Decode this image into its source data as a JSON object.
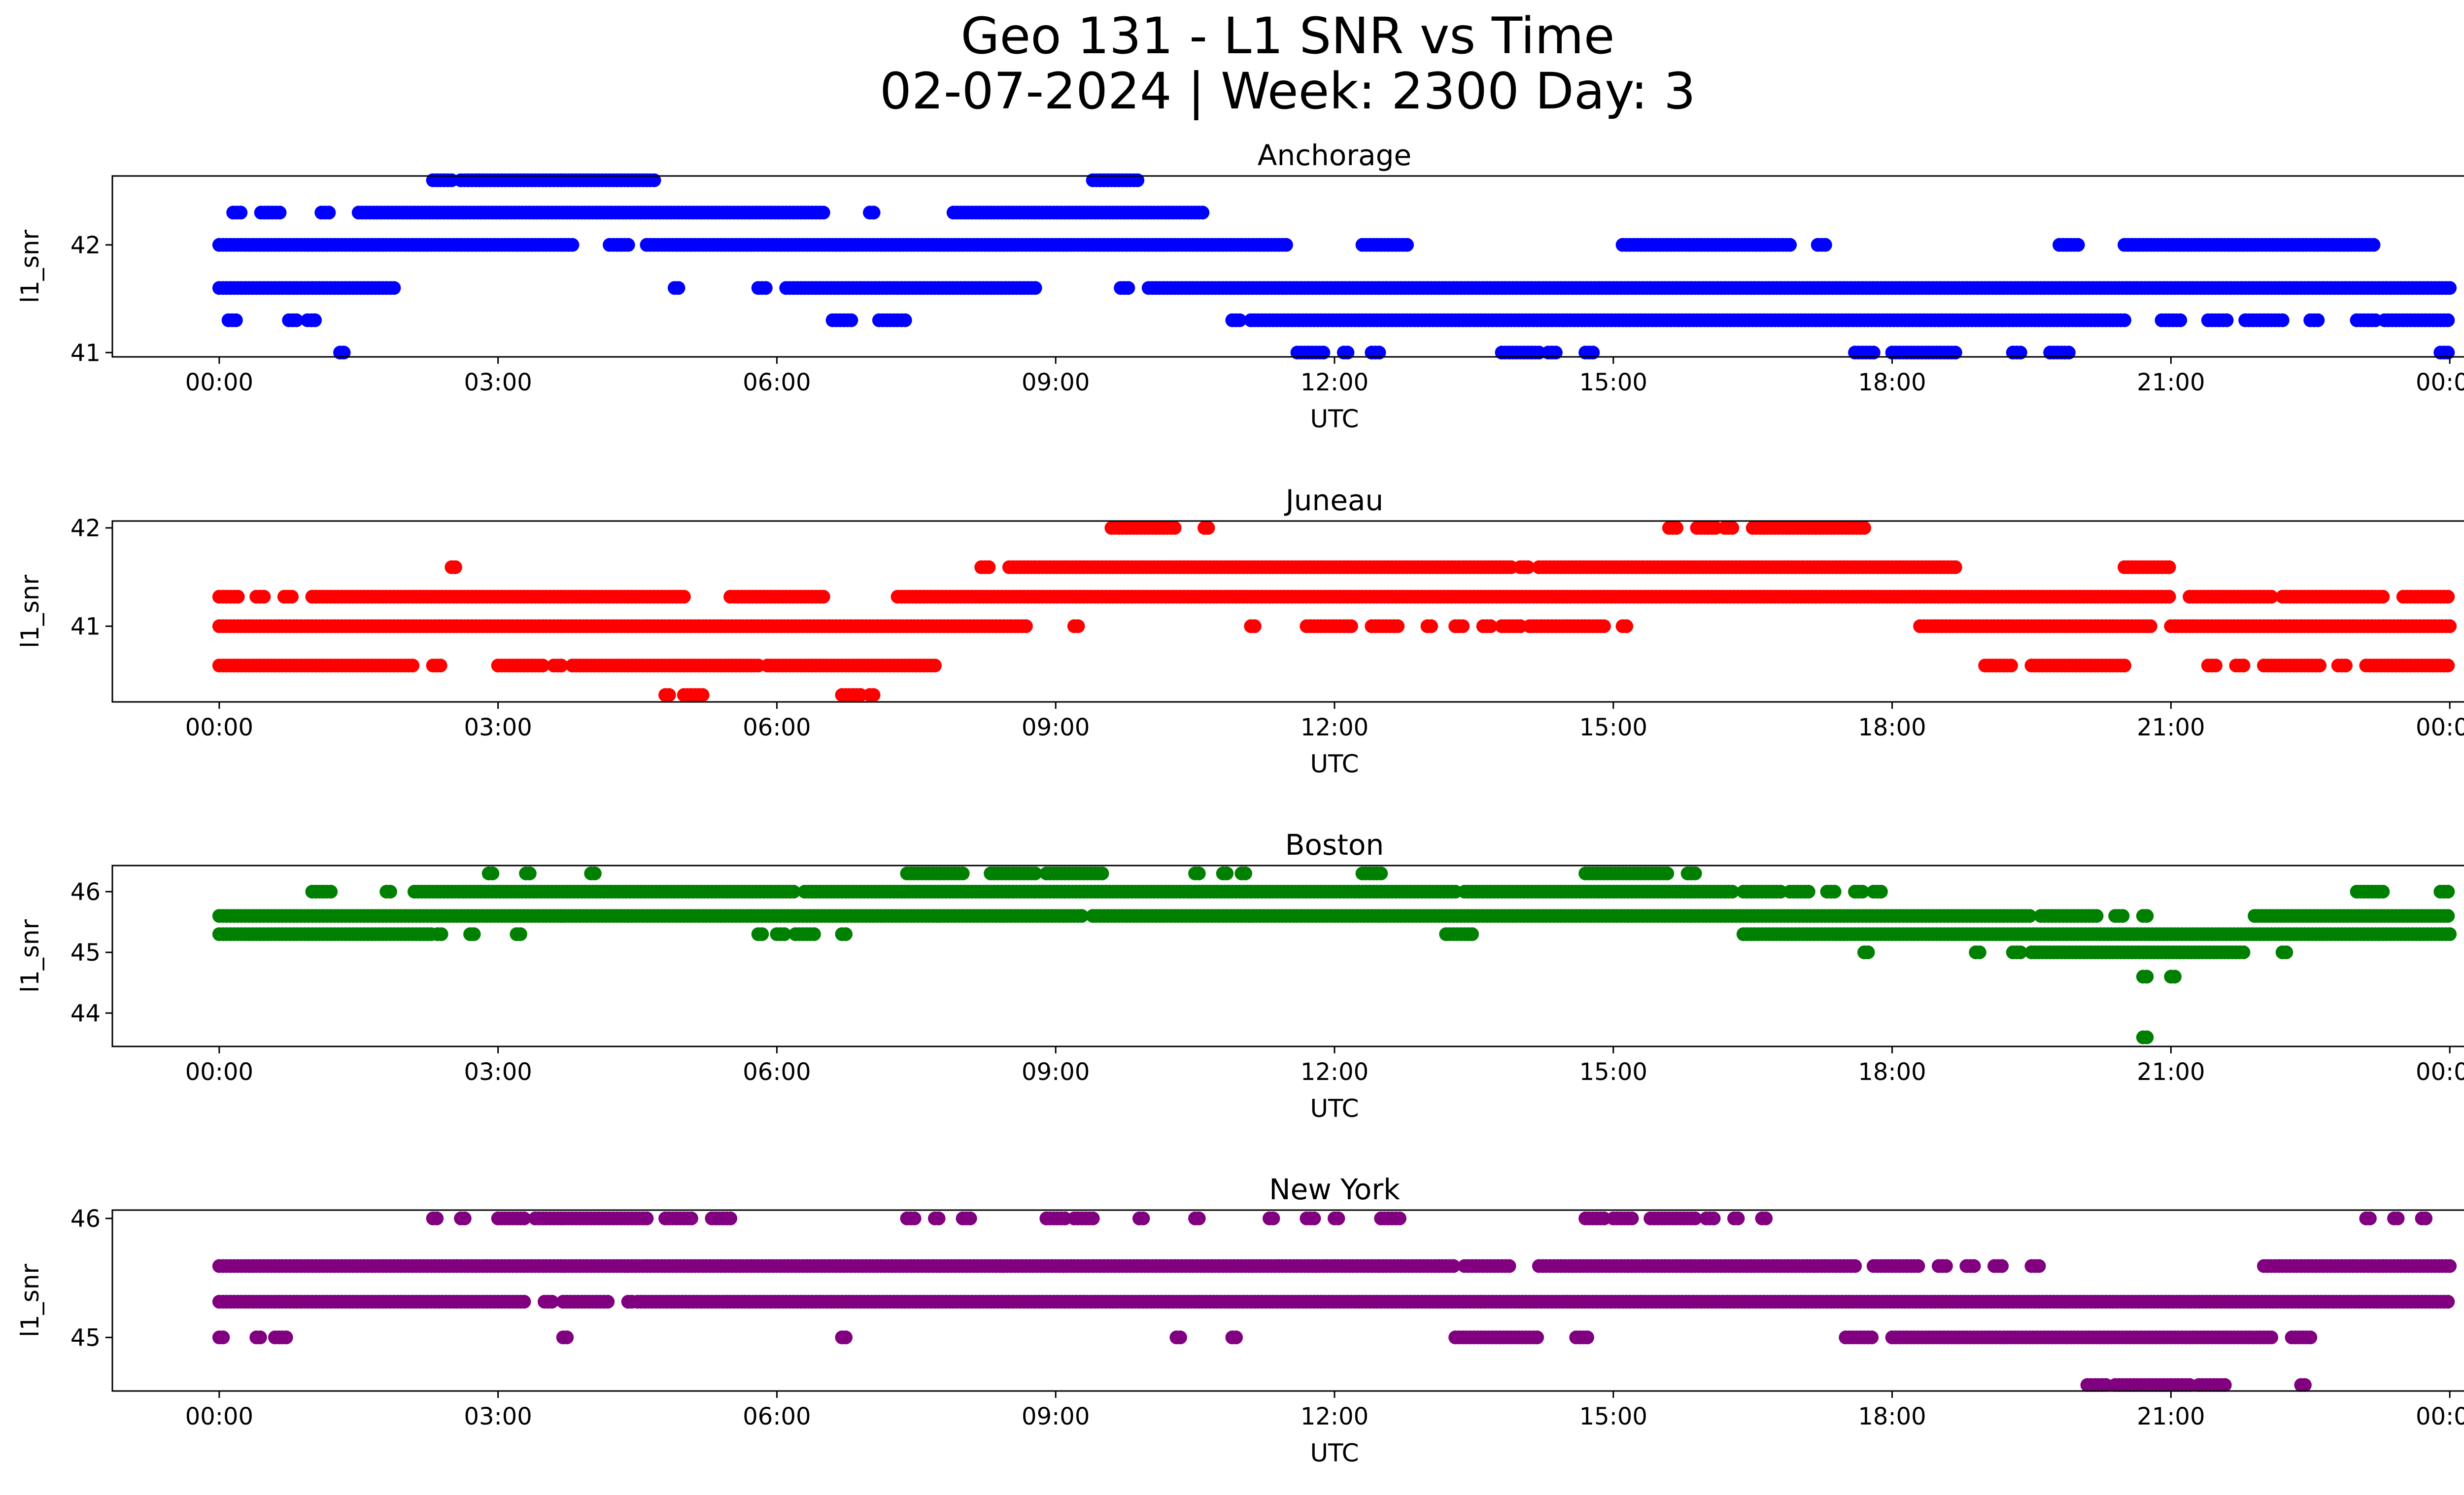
{
  "figure": {
    "title_line1": "Geo 131 - L1 SNR vs Time",
    "title_line2": "02-07-2024 | Week: 2300 Day: 3"
  },
  "chart_data": [
    {
      "type": "scatter",
      "title": "Anchorage",
      "xlabel": "UTC",
      "ylabel": "l1_snr",
      "color": "#0000ff",
      "xlim": [
        -1.15,
        25.15
      ],
      "ylim": [
        40.96,
        42.64
      ],
      "xticks": [
        "00:00",
        "03:00",
        "06:00",
        "09:00",
        "12:00",
        "15:00",
        "18:00",
        "21:00",
        "00:00"
      ],
      "yticks": [
        41,
        42
      ],
      "levels": [
        41.0,
        41.3,
        41.6,
        42.0,
        42.3,
        42.6
      ],
      "series": [
        {
          "y": 42.6,
          "runs": [
            [
              2.3,
              2.5
            ],
            [
              2.6,
              2.8
            ],
            [
              2.8,
              4.7
            ],
            [
              9.4,
              9.9
            ]
          ]
        },
        {
          "y": 42.3,
          "runs": [
            [
              0.15,
              0.25
            ],
            [
              0.45,
              0.65
            ],
            [
              1.1,
              1.2
            ],
            [
              1.5,
              6.5
            ],
            [
              7.0,
              7.05
            ],
            [
              7.9,
              10.6
            ]
          ]
        },
        {
          "y": 42.0,
          "runs": [
            [
              0.0,
              3.8
            ],
            [
              4.2,
              4.4
            ],
            [
              4.6,
              11.5
            ],
            [
              12.3,
              12.8
            ],
            [
              15.1,
              16.9
            ],
            [
              17.2,
              17.3
            ],
            [
              19.8,
              20.0
            ],
            [
              20.5,
              23.2
            ]
          ]
        },
        {
          "y": 41.6,
          "runs": [
            [
              0.0,
              1.9
            ],
            [
              4.9,
              4.95
            ],
            [
              5.8,
              5.9
            ],
            [
              6.1,
              8.8
            ],
            [
              9.7,
              9.8
            ],
            [
              10.0,
              24.0
            ]
          ]
        },
        {
          "y": 41.3,
          "runs": [
            [
              0.1,
              0.2
            ],
            [
              0.75,
              0.85
            ],
            [
              0.95,
              1.05
            ],
            [
              6.6,
              6.8
            ],
            [
              7.1,
              7.4
            ],
            [
              10.9,
              11.0
            ],
            [
              11.1,
              20.5
            ],
            [
              20.9,
              21.1
            ],
            [
              21.4,
              21.6
            ],
            [
              21.8,
              22.2
            ],
            [
              22.5,
              22.6
            ],
            [
              23.0,
              23.2
            ],
            [
              23.3,
              24.0
            ]
          ]
        },
        {
          "y": 41.0,
          "runs": [
            [
              1.3,
              1.35
            ],
            [
              11.6,
              11.9
            ],
            [
              12.1,
              12.15
            ],
            [
              12.4,
              12.5
            ],
            [
              13.8,
              14.2
            ],
            [
              14.3,
              14.4
            ],
            [
              14.7,
              14.8
            ],
            [
              17.6,
              17.8
            ],
            [
              18.0,
              18.7
            ],
            [
              19.3,
              19.4
            ],
            [
              19.7,
              19.9
            ],
            [
              23.9,
              24.0
            ]
          ]
        }
      ]
    },
    {
      "type": "scatter",
      "title": "Juneau",
      "xlabel": "UTC",
      "ylabel": "l1_snr",
      "color": "#ff0000",
      "xlim": [
        -1.15,
        25.15
      ],
      "ylim": [
        40.23,
        42.07
      ],
      "xticks": [
        "00:00",
        "03:00",
        "06:00",
        "09:00",
        "12:00",
        "15:00",
        "18:00",
        "21:00",
        "00:00"
      ],
      "yticks": [
        41,
        42
      ],
      "levels": [
        40.3,
        40.6,
        41.0,
        41.3,
        41.6,
        42.0
      ],
      "series": [
        {
          "y": 42.0,
          "runs": [
            [
              9.6,
              10.3
            ],
            [
              10.6,
              10.65
            ],
            [
              15.6,
              15.7
            ],
            [
              15.9,
              16.1
            ],
            [
              16.2,
              16.3
            ],
            [
              16.5,
              17.7
            ]
          ]
        },
        {
          "y": 41.6,
          "runs": [
            [
              2.5,
              2.55
            ],
            [
              8.2,
              8.3
            ],
            [
              8.5,
              13.9
            ],
            [
              14.0,
              14.1
            ],
            [
              14.2,
              18.7
            ],
            [
              20.5,
              21.0
            ]
          ]
        },
        {
          "y": 41.3,
          "runs": [
            [
              0.0,
              0.2
            ],
            [
              0.4,
              0.5
            ],
            [
              0.7,
              0.8
            ],
            [
              1.0,
              5.0
            ],
            [
              5.5,
              6.5
            ],
            [
              7.3,
              21.0
            ],
            [
              21.2,
              22.1
            ],
            [
              22.2,
              23.3
            ],
            [
              23.5,
              24.0
            ]
          ]
        },
        {
          "y": 41.0,
          "runs": [
            [
              0.0,
              8.7
            ],
            [
              9.2,
              9.25
            ],
            [
              11.1,
              11.15
            ],
            [
              11.7,
              12.2
            ],
            [
              12.4,
              12.7
            ],
            [
              13.0,
              13.05
            ],
            [
              13.3,
              13.4
            ],
            [
              13.6,
              13.7
            ],
            [
              13.8,
              14.0
            ],
            [
              14.1,
              14.9
            ],
            [
              15.1,
              15.15
            ],
            [
              18.3,
              20.8
            ],
            [
              21.0,
              24.0
            ]
          ]
        },
        {
          "y": 40.6,
          "runs": [
            [
              0.0,
              0.2
            ],
            [
              0.2,
              2.1
            ],
            [
              2.3,
              2.4
            ],
            [
              3.0,
              3.5
            ],
            [
              3.6,
              3.7
            ],
            [
              3.8,
              5.8
            ],
            [
              5.9,
              7.7
            ],
            [
              19.0,
              19.3
            ],
            [
              19.5,
              20.5
            ],
            [
              21.4,
              21.5
            ],
            [
              21.7,
              21.8
            ],
            [
              22.0,
              22.6
            ],
            [
              22.8,
              22.9
            ],
            [
              23.1,
              24.0
            ]
          ]
        },
        {
          "y": 40.3,
          "runs": [
            [
              4.8,
              4.85
            ],
            [
              5.0,
              5.2
            ],
            [
              6.7,
              6.9
            ],
            [
              7.0,
              7.05
            ]
          ]
        }
      ]
    },
    {
      "type": "scatter",
      "title": "Boston",
      "xlabel": "UTC",
      "ylabel": "l1_snr",
      "color": "#008000",
      "xlim": [
        -1.15,
        25.15
      ],
      "ylim": [
        43.45,
        46.43
      ],
      "xticks": [
        "00:00",
        "03:00",
        "06:00",
        "09:00",
        "12:00",
        "15:00",
        "18:00",
        "21:00",
        "00:00"
      ],
      "yticks": [
        44,
        45,
        46
      ],
      "levels": [
        43.6,
        44.6,
        45.0,
        45.3,
        45.6,
        46.0,
        46.3
      ],
      "series": [
        {
          "y": 46.3,
          "runs": [
            [
              2.9,
              2.95
            ],
            [
              3.3,
              3.35
            ],
            [
              4.0,
              4.05
            ],
            [
              7.4,
              8.0
            ],
            [
              8.3,
              8.8
            ],
            [
              8.9,
              9.5
            ],
            [
              10.5,
              10.55
            ],
            [
              10.8,
              10.85
            ],
            [
              11.0,
              11.05
            ],
            [
              12.3,
              12.5
            ],
            [
              14.7,
              15.6
            ],
            [
              15.8,
              15.9
            ]
          ]
        },
        {
          "y": 46.0,
          "runs": [
            [
              1.0,
              1.2
            ],
            [
              1.8,
              1.85
            ],
            [
              2.1,
              6.2
            ],
            [
              6.3,
              13.3
            ],
            [
              13.4,
              16.3
            ],
            [
              16.4,
              16.8
            ],
            [
              16.9,
              17.1
            ],
            [
              17.3,
              17.4
            ],
            [
              17.6,
              17.7
            ],
            [
              17.8,
              17.9
            ],
            [
              23.0,
              23.3
            ],
            [
              23.9,
              24.0
            ]
          ]
        },
        {
          "y": 45.6,
          "runs": [
            [
              0.0,
              9.3
            ],
            [
              9.4,
              19.5
            ],
            [
              19.6,
              20.2
            ],
            [
              20.4,
              20.5
            ],
            [
              20.7,
              20.75
            ],
            [
              21.9,
              24.0
            ]
          ]
        },
        {
          "y": 45.3,
          "runs": [
            [
              0.0,
              2.3
            ],
            [
              2.35,
              2.4
            ],
            [
              2.7,
              2.75
            ],
            [
              3.2,
              3.25
            ],
            [
              5.8,
              5.85
            ],
            [
              6.0,
              6.1
            ],
            [
              6.2,
              6.4
            ],
            [
              6.7,
              6.75
            ],
            [
              13.2,
              13.5
            ],
            [
              16.4,
              24.0
            ]
          ]
        },
        {
          "y": 45.0,
          "runs": [
            [
              17.7,
              17.75
            ],
            [
              18.9,
              18.95
            ],
            [
              19.3,
              19.4
            ],
            [
              19.5,
              21.8
            ],
            [
              22.2,
              22.25
            ]
          ]
        },
        {
          "y": 44.6,
          "runs": [
            [
              20.7,
              20.75
            ],
            [
              21.0,
              21.05
            ]
          ]
        },
        {
          "y": 43.6,
          "runs": [
            [
              20.7,
              20.75
            ]
          ]
        }
      ]
    },
    {
      "type": "scatter",
      "title": "New York",
      "xlabel": "UTC",
      "ylabel": "l1_snr",
      "color": "#800080",
      "xlim": [
        -1.15,
        25.15
      ],
      "ylim": [
        44.55,
        46.07
      ],
      "xticks": [
        "00:00",
        "03:00",
        "06:00",
        "09:00",
        "12:00",
        "15:00",
        "18:00",
        "21:00",
        "00:00"
      ],
      "yticks": [
        45,
        46
      ],
      "levels": [
        44.6,
        45.0,
        45.3,
        45.6,
        46.0
      ],
      "series": [
        {
          "y": 46.0,
          "runs": [
            [
              2.3,
              2.35
            ],
            [
              2.6,
              2.65
            ],
            [
              3.0,
              3.3
            ],
            [
              3.4,
              4.6
            ],
            [
              4.8,
              5.1
            ],
            [
              5.3,
              5.5
            ],
            [
              7.4,
              7.5
            ],
            [
              7.7,
              7.75
            ],
            [
              8.0,
              8.1
            ],
            [
              8.9,
              9.1
            ],
            [
              9.2,
              9.4
            ],
            [
              9.9,
              9.95
            ],
            [
              10.5,
              10.55
            ],
            [
              11.3,
              11.35
            ],
            [
              11.7,
              11.8
            ],
            [
              12.0,
              12.05
            ],
            [
              12.5,
              12.7
            ],
            [
              14.7,
              14.9
            ],
            [
              15.0,
              15.2
            ],
            [
              15.4,
              15.9
            ],
            [
              16.0,
              16.1
            ],
            [
              16.3,
              16.35
            ],
            [
              16.6,
              16.65
            ],
            [
              23.1,
              23.15
            ],
            [
              23.4,
              23.45
            ],
            [
              23.7,
              23.75
            ]
          ]
        },
        {
          "y": 45.6,
          "runs": [
            [
              0.0,
              13.3
            ],
            [
              13.4,
              13.9
            ],
            [
              14.2,
              17.6
            ],
            [
              17.8,
              18.3
            ],
            [
              18.5,
              18.6
            ],
            [
              18.8,
              18.9
            ],
            [
              19.1,
              19.2
            ],
            [
              19.5,
              19.6
            ],
            [
              22.0,
              24.0
            ]
          ]
        },
        {
          "y": 45.3,
          "runs": [
            [
              0.0,
              3.3
            ],
            [
              3.5,
              3.6
            ],
            [
              3.7,
              4.2
            ],
            [
              4.4,
              4.45
            ],
            [
              4.5,
              24.0
            ]
          ]
        },
        {
          "y": 45.0,
          "runs": [
            [
              0.0,
              0.05
            ],
            [
              0.4,
              0.45
            ],
            [
              0.6,
              0.75
            ],
            [
              3.7,
              3.75
            ],
            [
              6.7,
              6.75
            ],
            [
              10.3,
              10.35
            ],
            [
              10.9,
              10.95
            ],
            [
              13.3,
              14.2
            ],
            [
              14.6,
              14.75
            ],
            [
              17.5,
              17.8
            ],
            [
              18.0,
              22.1
            ],
            [
              22.3,
              22.5
            ]
          ]
        },
        {
          "y": 44.6,
          "runs": [
            [
              20.1,
              20.3
            ],
            [
              20.4,
              21.2
            ],
            [
              21.3,
              21.6
            ],
            [
              22.4,
              22.45
            ]
          ]
        }
      ]
    }
  ]
}
